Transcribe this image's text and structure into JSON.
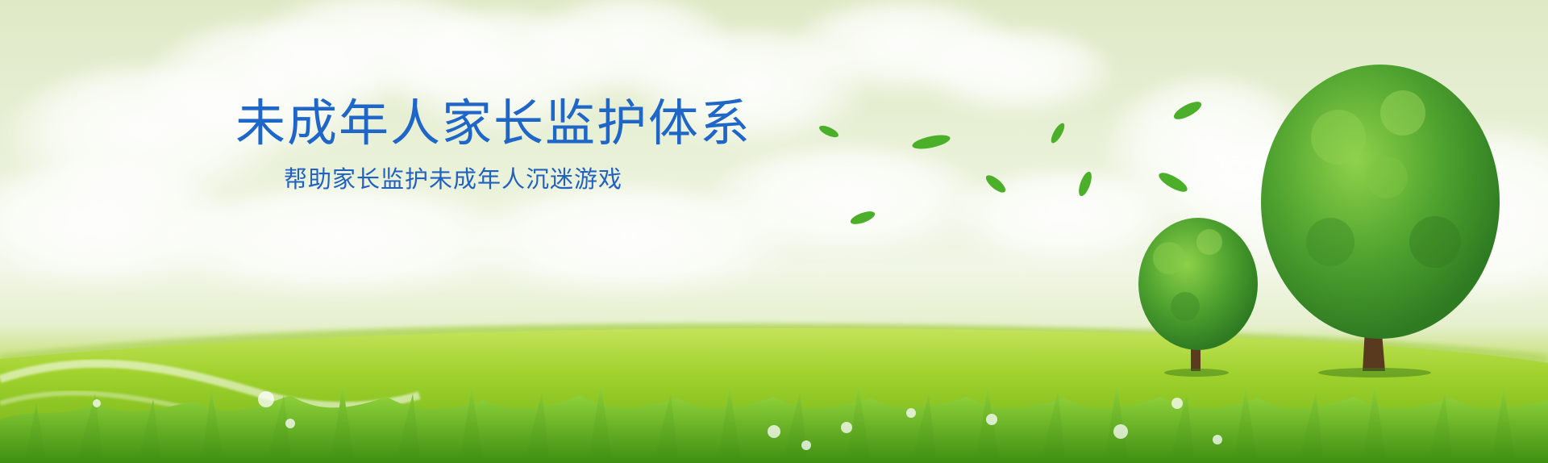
{
  "banner": {
    "title": "未成年人家长监护体系",
    "subtitle": "帮助家长监护未成年人沉迷游戏",
    "colors": {
      "title": "#1f66c9",
      "sky": "#e2ecc8",
      "grass": "#8cc63f",
      "leaf": "#4caf2a",
      "tree": "#3f9a2c"
    },
    "icons": [
      "cloud-icon",
      "leaf-icon",
      "tree-icon",
      "grass-icon",
      "water-drop-icon"
    ]
  }
}
